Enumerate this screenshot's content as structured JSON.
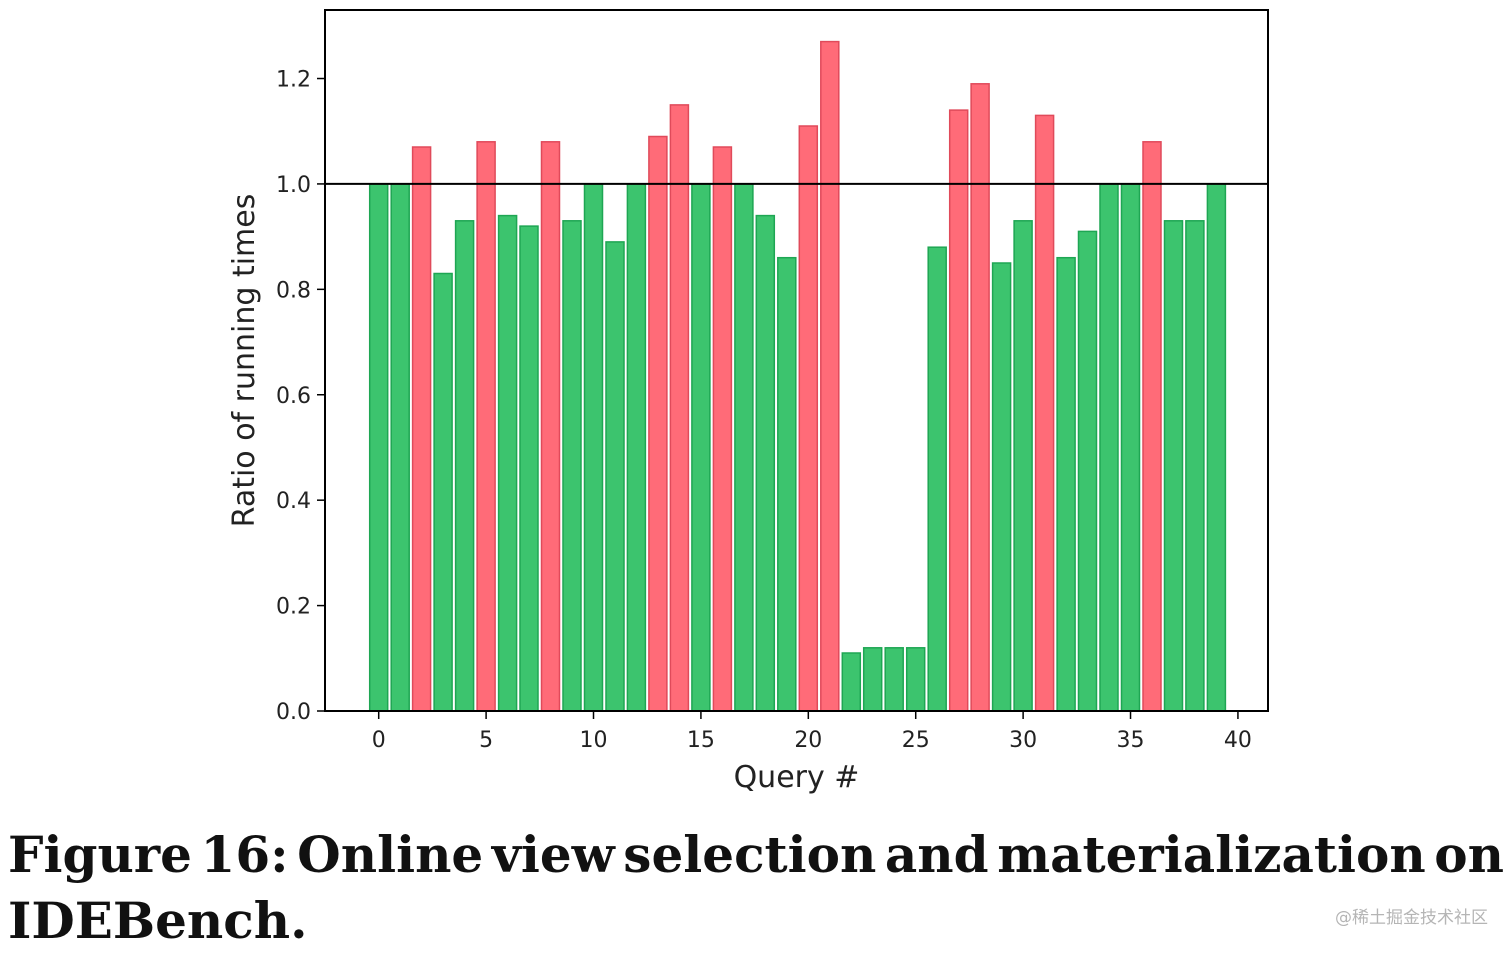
{
  "chart_data": {
    "type": "bar",
    "xlabel": "Query #",
    "ylabel": "Ratio of running times",
    "xlim": [
      -2.5,
      41.4
    ],
    "ylim": [
      0.0,
      1.33
    ],
    "x_ticks": [
      0,
      5,
      10,
      15,
      20,
      25,
      30,
      35,
      40
    ],
    "y_ticks": [
      0.0,
      0.2,
      0.4,
      0.6,
      0.8,
      1.0,
      1.2
    ],
    "reference_line": 1.0,
    "grid": false,
    "colors": {
      "below_or_equal_reference": "#3cc46e",
      "below_or_equal_reference_edge": "#1ea653",
      "above_reference": "#ff6b78",
      "above_reference_edge": "#e04a5a",
      "reference_line": "#000000"
    },
    "x": [
      0,
      1,
      2,
      3,
      4,
      5,
      6,
      7,
      8,
      9,
      10,
      11,
      12,
      13,
      14,
      15,
      16,
      17,
      18,
      19,
      20,
      21,
      22,
      23,
      24,
      25,
      26,
      27,
      28,
      29,
      30,
      31,
      32,
      33,
      34,
      35,
      36,
      37,
      38,
      39
    ],
    "values": [
      1.0,
      1.0,
      1.07,
      0.83,
      0.93,
      1.08,
      0.94,
      0.92,
      1.08,
      0.93,
      1.0,
      0.89,
      1.0,
      1.09,
      1.15,
      1.0,
      1.07,
      1.0,
      0.94,
      0.86,
      1.11,
      1.27,
      0.11,
      0.12,
      0.12,
      0.12,
      0.88,
      1.14,
      1.19,
      0.85,
      0.93,
      1.13,
      0.86,
      0.91,
      1.0,
      1.0,
      1.08,
      0.93,
      0.93,
      1.0
    ]
  },
  "caption": {
    "line1_words": [
      "Figure",
      "16:",
      "Online",
      "view",
      "selection",
      "and",
      "materialization",
      "on"
    ],
    "line2": "IDEBench."
  },
  "watermark": "@稀土掘金技术社区"
}
